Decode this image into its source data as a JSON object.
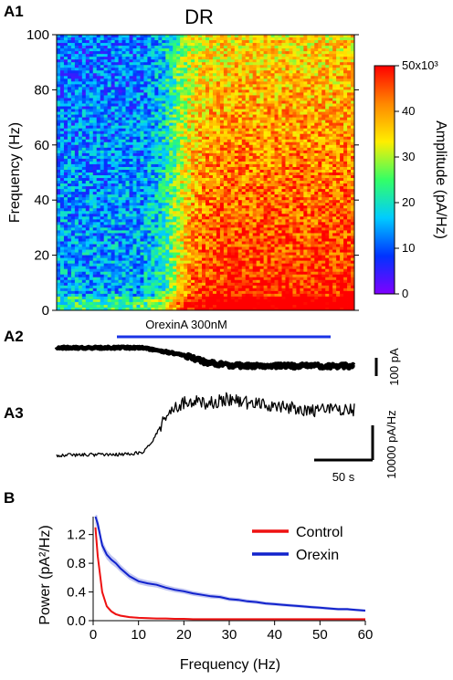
{
  "panel_labels": {
    "a1": "A1",
    "a2": "A2",
    "a3": "A3",
    "b": "B"
  },
  "chart_data": [
    {
      "type": "heatmap",
      "title": "DR",
      "ylabel": "Frequency (Hz)",
      "ylim": [
        0,
        100
      ],
      "yticks": [
        "0",
        "20",
        "40",
        "60",
        "80",
        "100"
      ],
      "colorbar": {
        "label": "Amplitude (pA/Hz)",
        "range": [
          0,
          50000
        ],
        "ticks": [
          "0",
          "10",
          "20",
          "30",
          "40",
          "50x10³"
        ],
        "colors": [
          "#8000ff",
          "#0033ff",
          "#00ccff",
          "#33ff66",
          "#ffee00",
          "#ff8800",
          "#ff0000"
        ]
      },
      "grid": false
    },
    {
      "type": "line",
      "title": "",
      "annotation": "OrexinA 300nM",
      "annotation_color": "#1a33e6",
      "scalebar_label": "100 pA",
      "trace": {
        "x": [
          0,
          40,
          60,
          70,
          80,
          90,
          110,
          140
        ],
        "values": [
          0,
          0,
          -0.4,
          -0.8,
          -0.95,
          -1.0,
          -1.0,
          -1.0
        ]
      }
    },
    {
      "type": "line",
      "title": "",
      "scalebar_y_label": "10000 pA/Hz",
      "scalebar_x_label": "50 s",
      "trace": {
        "x": [
          0,
          30,
          40,
          45,
          50,
          55,
          60,
          65,
          70,
          80,
          90,
          100,
          110,
          120,
          130,
          140
        ],
        "values": [
          0.1,
          0.15,
          0.25,
          1.0,
          2.6,
          3.5,
          3.9,
          4.0,
          3.8,
          4.2,
          3.9,
          3.7,
          3.6,
          3.3,
          3.5,
          3.4
        ]
      }
    },
    {
      "type": "line",
      "title": "",
      "xlabel": "Frequency (Hz)",
      "ylabel": "Power (pA²/Hz)",
      "xlim": [
        0,
        60
      ],
      "ylim": [
        0,
        1.45
      ],
      "xticks": [
        "0",
        "10",
        "20",
        "30",
        "40",
        "50",
        "60"
      ],
      "yticks": [
        "0.0",
        "0.4",
        "0.8",
        "1.2"
      ],
      "legend_placement": "top-right",
      "x": [
        0.5,
        1,
        2,
        3,
        4,
        5,
        6,
        8,
        10,
        12,
        14,
        16,
        18,
        20,
        22,
        24,
        26,
        28,
        30,
        32,
        34,
        36,
        38,
        40,
        42,
        44,
        46,
        48,
        50,
        52,
        54,
        56,
        58,
        60
      ],
      "series": [
        {
          "name": "Control",
          "color": "#ee1111",
          "values": [
            1.3,
            0.9,
            0.4,
            0.2,
            0.13,
            0.09,
            0.07,
            0.05,
            0.04,
            0.035,
            0.03,
            0.03,
            0.025,
            0.025,
            0.02,
            0.02,
            0.02,
            0.02,
            0.02,
            0.02,
            0.02,
            0.02,
            0.02,
            0.02,
            0.02,
            0.02,
            0.02,
            0.02,
            0.02,
            0.02,
            0.02,
            0.02,
            0.02,
            0.02
          ]
        },
        {
          "name": "Orexin",
          "color": "#1122cc",
          "values": [
            1.45,
            1.35,
            1.05,
            0.92,
            0.85,
            0.8,
            0.73,
            0.62,
            0.55,
            0.52,
            0.5,
            0.46,
            0.43,
            0.41,
            0.38,
            0.36,
            0.34,
            0.33,
            0.3,
            0.29,
            0.27,
            0.26,
            0.24,
            0.23,
            0.22,
            0.21,
            0.2,
            0.19,
            0.18,
            0.17,
            0.16,
            0.16,
            0.15,
            0.14
          ]
        }
      ]
    }
  ]
}
